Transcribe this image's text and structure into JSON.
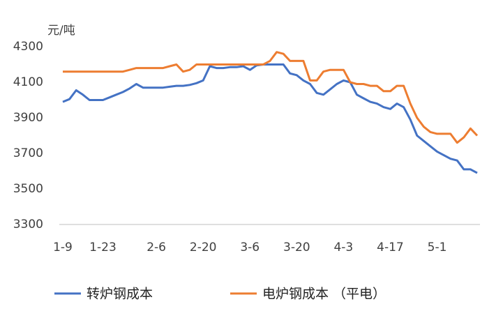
{
  "chart_data": {
    "type": "line",
    "y_unit": "元/吨",
    "categories": [
      "1-9",
      null,
      null,
      null,
      null,
      null,
      "1-23",
      null,
      null,
      null,
      null,
      null,
      null,
      null,
      "2-6",
      null,
      null,
      null,
      null,
      null,
      null,
      "2-20",
      null,
      null,
      null,
      null,
      null,
      null,
      "3-6",
      null,
      null,
      null,
      null,
      null,
      null,
      "3-20",
      null,
      null,
      null,
      null,
      null,
      null,
      "4-3",
      null,
      null,
      null,
      null,
      null,
      null,
      "4-17",
      null,
      null,
      null,
      null,
      null,
      null,
      "5-1",
      null,
      null,
      null,
      null,
      null,
      null
    ],
    "series": [
      {
        "name": "转炉钢成本",
        "color": "#4472c4",
        "values": [
          3990,
          4005,
          4055,
          4030,
          4000,
          4000,
          4000,
          4015,
          4030,
          4045,
          4065,
          4090,
          4070,
          4070,
          4070,
          4070,
          4075,
          4080,
          4080,
          4085,
          4095,
          4110,
          4190,
          4180,
          4180,
          4185,
          4185,
          4190,
          4170,
          4195,
          4200,
          4200,
          4200,
          4200,
          4150,
          4140,
          4110,
          4090,
          4040,
          4030,
          4060,
          4090,
          4110,
          4100,
          4030,
          4010,
          3990,
          3980,
          3960,
          3950,
          3980,
          3960,
          3890,
          3800,
          3770,
          3740,
          3710,
          3690,
          3670,
          3660,
          3610,
          3610,
          3590
        ]
      },
      {
        "name": "电炉钢成本 （平电）",
        "color": "#ed7d31",
        "values": [
          4160,
          4160,
          4160,
          4160,
          4160,
          4160,
          4160,
          4160,
          4160,
          4160,
          4170,
          4180,
          4180,
          4180,
          4180,
          4180,
          4190,
          4200,
          4160,
          4170,
          4200,
          4200,
          4200,
          4200,
          4200,
          4200,
          4200,
          4200,
          4200,
          4200,
          4200,
          4220,
          4270,
          4260,
          4220,
          4220,
          4220,
          4110,
          4110,
          4160,
          4170,
          4170,
          4170,
          4100,
          4090,
          4090,
          4080,
          4080,
          4050,
          4050,
          4080,
          4080,
          3980,
          3900,
          3850,
          3820,
          3810,
          3810,
          3810,
          3760,
          3790,
          3840,
          3800
        ]
      }
    ],
    "ylim": [
      3300,
      4300
    ],
    "yticks": [
      3300,
      3500,
      3700,
      3900,
      4100,
      4300
    ],
    "grid": false
  }
}
